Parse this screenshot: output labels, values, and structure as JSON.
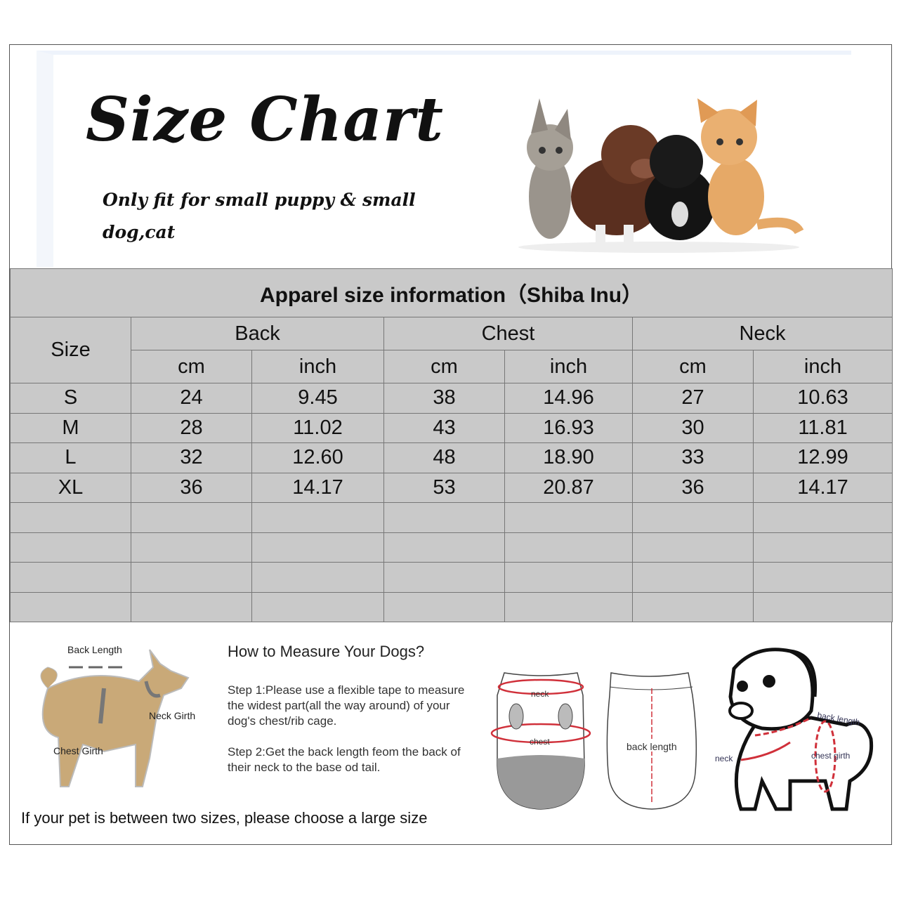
{
  "header": {
    "title": "Size Chart",
    "subtitle": "Only fit for  small puppy & small dog,cat"
  },
  "table": {
    "caption": "Apparel  size  information（Shiba Inu）",
    "size_label": "Size",
    "groups": [
      "Back",
      "Chest",
      "Neck"
    ],
    "units": [
      "cm",
      "inch",
      "cm",
      "inch",
      "cm",
      "inch"
    ],
    "rows": [
      [
        "S",
        "24",
        "9.45",
        "38",
        "14.96",
        "27",
        "10.63"
      ],
      [
        "M",
        "28",
        "11.02",
        "43",
        "16.93",
        "30",
        "11.81"
      ],
      [
        "L",
        "32",
        "12.60",
        "48",
        "18.90",
        "33",
        "12.99"
      ],
      [
        "XL",
        "36",
        "14.17",
        "53",
        "20.87",
        "36",
        "14.17"
      ],
      [
        "",
        "",
        "",
        "",
        "",
        "",
        ""
      ],
      [
        "",
        "",
        "",
        "",
        "",
        "",
        ""
      ],
      [
        "",
        "",
        "",
        "",
        "",
        "",
        ""
      ],
      [
        "",
        "",
        "",
        "",
        "",
        "",
        ""
      ]
    ],
    "background": "#c9c9c9"
  },
  "measure": {
    "dog_labels": {
      "back": "Back Length",
      "neck": "Neck Girth",
      "chest": "Chest Girth"
    },
    "heading": "How to Measure Your Dogs?",
    "step1": "Step 1:Please use a flexible tape to measure the widest part(all the way around) of your dog's chest/rib cage.",
    "step2": "Step 2:Get the back length feom the back of their neck to the base od tail.",
    "note": "If your pet is between two sizes, please choose a large size",
    "garment_front": {
      "neck": "neck",
      "chest": "chest"
    },
    "garment_back": {
      "back": "back length"
    },
    "puppy": {
      "back": "back length",
      "neck": "neck",
      "chest": "chest girth"
    },
    "accent": "#d0303a"
  }
}
